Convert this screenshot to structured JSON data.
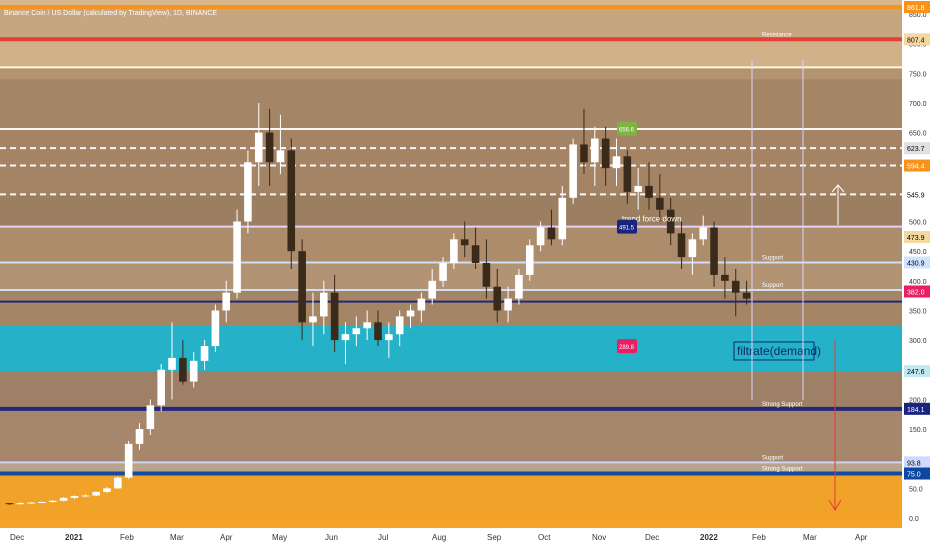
{
  "chart_data": {
    "type": "candlestick",
    "title": "Binance Coin / US Dollar (calculated by TradingView), 1D, BINANCE",
    "xlabel": "",
    "ylabel": "",
    "x_ticks": [
      "Dec",
      "2021",
      "Feb",
      "Mar",
      "Apr",
      "May",
      "Jun",
      "Jul",
      "Aug",
      "Sep",
      "Oct",
      "Nov",
      "Dec",
      "2022",
      "Feb",
      "Mar",
      "Apr"
    ],
    "y_ticks": [
      "0.0",
      "50.0",
      "100.0",
      "150.0",
      "200.0",
      "250.0",
      "300.0",
      "350.0",
      "400.0",
      "450.0",
      "500.0",
      "550.0",
      "600.0",
      "650.0",
      "700.0",
      "750.0",
      "800.0",
      "850.0"
    ],
    "price_labels": [
      {
        "value": "883.8",
        "color": "#e0e0e0",
        "text_color": "#000000"
      },
      {
        "value": "861.8",
        "color": "#f7931a",
        "text_color": "#ffffff"
      },
      {
        "value": "807.4",
        "color": "#f5d7a0",
        "text_color": "#000000"
      },
      {
        "value": "623.7",
        "color": "#e0e0e0",
        "text_color": "#000000"
      },
      {
        "value": "594.4",
        "color": "#f7931a",
        "text_color": "#ffffff"
      },
      {
        "value": "545.9",
        "color": "#ffffff",
        "text_color": "#000000"
      },
      {
        "value": "473.9",
        "color": "#f5d7a0",
        "text_color": "#000000"
      },
      {
        "value": "430.9",
        "color": "#cfe3ff",
        "text_color": "#000000"
      },
      {
        "value": "384.6",
        "color": "#ffffff",
        "text_color": "#000000"
      },
      {
        "value": "382.0",
        "color": "#e91e63",
        "text_color": "#ffffff"
      },
      {
        "value": "247.6",
        "color": "#bfe9f2",
        "text_color": "#000000"
      },
      {
        "value": "184.1",
        "color": "#1a237e",
        "text_color": "#ffffff"
      },
      {
        "value": "93.8",
        "color": "#cfd8ff",
        "text_color": "#000000"
      },
      {
        "value": "75.0",
        "color": "#0d47a1",
        "text_color": "#ffffff"
      }
    ],
    "levels": [
      {
        "value": 883.8,
        "label": "Resistance",
        "color": "#ffffff"
      },
      {
        "value": 861.8,
        "label": "",
        "color": "#f7931a"
      },
      {
        "value": 807.4,
        "label": "Resistance",
        "color": "#e53935"
      },
      {
        "value": 760.0,
        "label": "",
        "color": "#ffffe0"
      },
      {
        "value": 656.0,
        "label": "",
        "color": "#ffffff"
      },
      {
        "value": 623.7,
        "label": "",
        "color": "#ffffff"
      },
      {
        "value": 594.4,
        "label": "",
        "color": "#ffffff"
      },
      {
        "value": 545.9,
        "label": "",
        "color": "#ffffff"
      },
      {
        "value": 491.5,
        "label": "",
        "color": "#e8d7ff"
      },
      {
        "value": 430.9,
        "label": "Support",
        "color": "#cfe3ff"
      },
      {
        "value": 384.6,
        "label": "Support",
        "color": "#cfe3ff"
      },
      {
        "value": 365.0,
        "label": "",
        "color": "#1a237e"
      },
      {
        "value": 184.1,
        "label": "Strong Support",
        "color": "#1a237e"
      },
      {
        "value": 93.8,
        "label": "Support",
        "color": "#cfd8ff"
      },
      {
        "value": 75.0,
        "label": "Strong Support",
        "color": "#0d47a1"
      }
    ],
    "demand_zone": {
      "from": 247.6,
      "to": 325.0,
      "label": "filtrate(demand)"
    },
    "annotations": [
      {
        "text": "656.6",
        "value": 656.6,
        "color": "#7cb342"
      },
      {
        "text": "trend force down",
        "value": 500.0,
        "color": "#ffffff"
      },
      {
        "text": "491.5",
        "value": 491.5,
        "color": "#1a237e"
      },
      {
        "text": "289.8",
        "value": 289.8,
        "color": "#e91e63"
      }
    ],
    "series": [
      {
        "values": [
          [
            25,
            25,
            22,
            24
          ],
          [
            24,
            26,
            23,
            25
          ],
          [
            25,
            27,
            24,
            26
          ],
          [
            26,
            28,
            25,
            27
          ],
          [
            27,
            30,
            26,
            29
          ],
          [
            29,
            35,
            28,
            34
          ],
          [
            34,
            38,
            32,
            37
          ],
          [
            37,
            40,
            35,
            38
          ],
          [
            38,
            45,
            37,
            44
          ],
          [
            44,
            52,
            42,
            50
          ],
          [
            50,
            70,
            49,
            68
          ],
          [
            68,
            130,
            66,
            125
          ],
          [
            125,
            160,
            115,
            150
          ],
          [
            150,
            200,
            140,
            190
          ],
          [
            190,
            260,
            180,
            250
          ],
          [
            250,
            330,
            200,
            270
          ],
          [
            270,
            300,
            225,
            230
          ],
          [
            230,
            280,
            220,
            265
          ],
          [
            265,
            300,
            250,
            290
          ],
          [
            290,
            360,
            280,
            350
          ],
          [
            350,
            400,
            330,
            380
          ],
          [
            380,
            520,
            370,
            500
          ],
          [
            500,
            620,
            480,
            600
          ],
          [
            600,
            700,
            560,
            650
          ],
          [
            650,
            690,
            560,
            600
          ],
          [
            600,
            680,
            580,
            620
          ],
          [
            620,
            640,
            420,
            450
          ],
          [
            450,
            470,
            300,
            330
          ],
          [
            330,
            380,
            290,
            340
          ],
          [
            340,
            400,
            310,
            380
          ],
          [
            380,
            410,
            280,
            300
          ],
          [
            300,
            330,
            260,
            310
          ],
          [
            310,
            340,
            290,
            320
          ],
          [
            320,
            350,
            300,
            330
          ],
          [
            330,
            350,
            290,
            300
          ],
          [
            300,
            330,
            270,
            310
          ],
          [
            310,
            350,
            290,
            340
          ],
          [
            340,
            360,
            320,
            350
          ],
          [
            350,
            380,
            330,
            370
          ],
          [
            370,
            420,
            360,
            400
          ],
          [
            400,
            440,
            390,
            430
          ],
          [
            430,
            480,
            420,
            470
          ],
          [
            470,
            500,
            440,
            460
          ],
          [
            460,
            490,
            420,
            430
          ],
          [
            430,
            470,
            370,
            390
          ],
          [
            390,
            420,
            330,
            350
          ],
          [
            350,
            390,
            330,
            370
          ],
          [
            370,
            420,
            360,
            410
          ],
          [
            410,
            470,
            400,
            460
          ],
          [
            460,
            500,
            450,
            490
          ],
          [
            490,
            520,
            460,
            470
          ],
          [
            470,
            560,
            460,
            540
          ],
          [
            540,
            640,
            530,
            630
          ],
          [
            630,
            690,
            580,
            600
          ],
          [
            600,
            660,
            560,
            640
          ],
          [
            640,
            660,
            560,
            590
          ],
          [
            590,
            640,
            560,
            610
          ],
          [
            610,
            620,
            530,
            550
          ],
          [
            550,
            590,
            520,
            560
          ],
          [
            560,
            600,
            520,
            540
          ],
          [
            540,
            580,
            500,
            520
          ],
          [
            520,
            540,
            460,
            480
          ],
          [
            480,
            500,
            420,
            440
          ],
          [
            440,
            480,
            410,
            470
          ],
          [
            470,
            510,
            460,
            490
          ],
          [
            490,
            500,
            390,
            410
          ],
          [
            410,
            440,
            370,
            400
          ],
          [
            400,
            420,
            340,
            380
          ],
          [
            380,
            400,
            360,
            370
          ]
        ]
      }
    ]
  }
}
